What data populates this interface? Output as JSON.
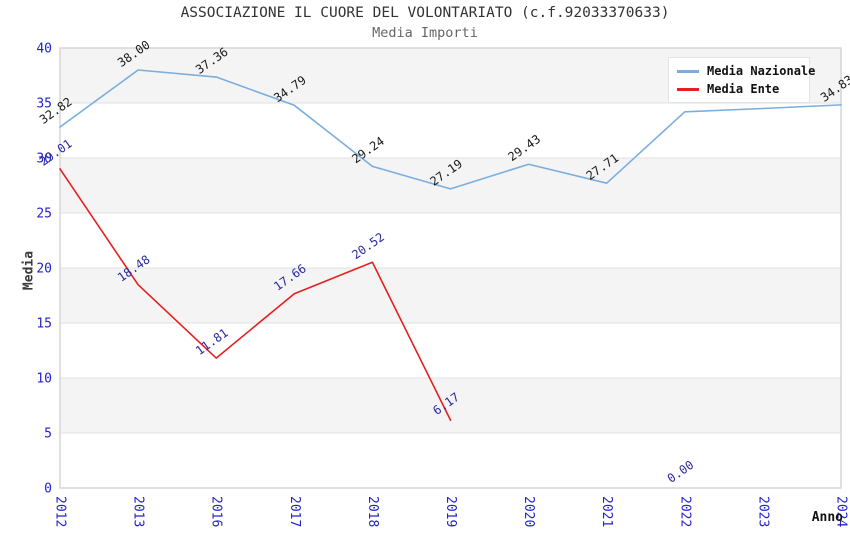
{
  "header": {
    "title": "ASSOCIAZIONE IL CUORE DEL VOLONTARIATO (c.f.92033370633)",
    "subtitle": "Media Importi"
  },
  "axes": {
    "y_label": "Media",
    "x_label": "Anno",
    "y_ticks": [
      "0",
      "5",
      "10",
      "15",
      "20",
      "25",
      "30",
      "35",
      "40"
    ],
    "x_ticks": [
      "2012",
      "2013",
      "2016",
      "2017",
      "2018",
      "2019",
      "2020",
      "2021",
      "2022",
      "2023",
      "2024"
    ],
    "tick_color": "#2323cc"
  },
  "legend": {
    "position": "top-right",
    "items": [
      {
        "label": "Media Nazionale",
        "color": "#7aaede"
      },
      {
        "label": "Media Ente",
        "color": "#e62020"
      }
    ]
  },
  "colors": {
    "band_fill": "#f4f4f4",
    "gridline": "#e2e2e2",
    "plot_border": "#d5d5d5",
    "national_line": "#7aaede",
    "entity_line": "#e62020",
    "national_label": "#1a1a1a",
    "entity_label": "#2a2a9e"
  },
  "chart_data": {
    "type": "line",
    "title": "ASSOCIAZIONE IL CUORE DEL VOLONTARIATO (c.f.92033370633)",
    "subtitle": "Media Importi",
    "xlabel": "Anno",
    "ylabel": "Media",
    "ylim": [
      0,
      40
    ],
    "y_step": 5,
    "grid": true,
    "bands": true,
    "legend_position": "top-right",
    "categories": [
      "2012",
      "2013",
      "2016",
      "2017",
      "2018",
      "2019",
      "2020",
      "2021",
      "2022",
      "2023",
      "2024"
    ],
    "series": [
      {
        "name": "Media Nazionale",
        "color": "#7aaede",
        "label_color": "#1a1a1a",
        "values": [
          32.82,
          38.0,
          37.36,
          34.79,
          29.24,
          27.19,
          29.43,
          27.71,
          34.2,
          34.5,
          34.83
        ],
        "labels": [
          "32.82",
          "38.00",
          "37.36",
          "34.79",
          "29.24",
          "27.19",
          "29.43",
          "27.71",
          null,
          null,
          "34.83"
        ]
      },
      {
        "name": "Media Ente",
        "color": "#e62020",
        "label_color": "#2a2a9e",
        "values": [
          29.01,
          18.48,
          11.81,
          17.66,
          20.52,
          6.17,
          null,
          null,
          0.0,
          null,
          null
        ],
        "labels": [
          "29.01",
          "18.48",
          "11.81",
          "17.66",
          "20.52",
          "6.17",
          null,
          null,
          "0.00",
          null,
          null
        ]
      }
    ]
  }
}
